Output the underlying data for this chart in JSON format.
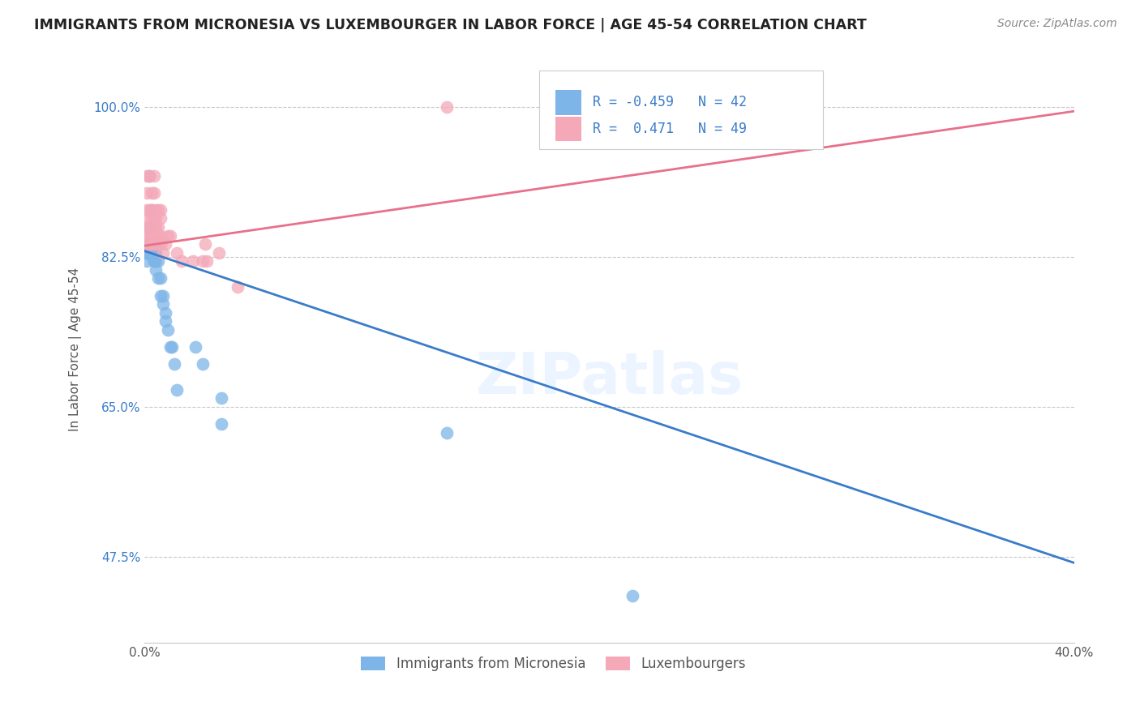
{
  "title": "IMMIGRANTS FROM MICRONESIA VS LUXEMBOURGER IN LABOR FORCE | AGE 45-54 CORRELATION CHART",
  "source": "Source: ZipAtlas.com",
  "ylabel": "In Labor Force | Age 45-54",
  "yticks_pct": [
    47.5,
    65.0,
    82.5,
    100.0
  ],
  "micronesia_color": "#7EB5E8",
  "luxembourger_color": "#F4A8B8",
  "micronesia_line_color": "#3A7CC8",
  "luxembourger_line_color": "#E8708A",
  "background_color": "#ffffff",
  "grid_color": "#c8c8c8",
  "R_micronesia": -0.459,
  "N_micronesia": 42,
  "R_luxembourger": 0.471,
  "N_luxembourger": 49,
  "watermark": "ZIPatlas",
  "xlim": [
    0.0,
    0.4
  ],
  "ylim": [
    0.375,
    1.06
  ],
  "mic_trend_x0": 0.0,
  "mic_trend_y0": 0.832,
  "mic_trend_x1": 0.4,
  "mic_trend_y1": 0.468,
  "lux_trend_x0": 0.0,
  "lux_trend_y0": 0.838,
  "lux_trend_x1": 0.4,
  "lux_trend_y1": 0.995,
  "micronesia_x": [
    0.001,
    0.001,
    0.001,
    0.001,
    0.001,
    0.001,
    0.001,
    0.002,
    0.002,
    0.002,
    0.002,
    0.003,
    0.003,
    0.003,
    0.003,
    0.004,
    0.004,
    0.004,
    0.004,
    0.005,
    0.005,
    0.005,
    0.005,
    0.006,
    0.006,
    0.007,
    0.007,
    0.008,
    0.008,
    0.009,
    0.009,
    0.01,
    0.011,
    0.012,
    0.013,
    0.014,
    0.022,
    0.025,
    0.033,
    0.033,
    0.13,
    0.21
  ],
  "micronesia_y": [
    0.84,
    0.84,
    0.83,
    0.83,
    0.83,
    0.83,
    0.82,
    0.92,
    0.86,
    0.84,
    0.83,
    0.88,
    0.86,
    0.84,
    0.83,
    0.84,
    0.83,
    0.82,
    0.82,
    0.84,
    0.83,
    0.82,
    0.81,
    0.82,
    0.8,
    0.8,
    0.78,
    0.78,
    0.77,
    0.76,
    0.75,
    0.74,
    0.72,
    0.72,
    0.7,
    0.67,
    0.72,
    0.7,
    0.66,
    0.63,
    0.62,
    0.43
  ],
  "luxembourger_x": [
    0.001,
    0.001,
    0.001,
    0.001,
    0.001,
    0.001,
    0.002,
    0.002,
    0.002,
    0.002,
    0.002,
    0.002,
    0.003,
    0.003,
    0.003,
    0.003,
    0.003,
    0.004,
    0.004,
    0.004,
    0.004,
    0.004,
    0.004,
    0.005,
    0.005,
    0.005,
    0.005,
    0.005,
    0.006,
    0.006,
    0.006,
    0.006,
    0.007,
    0.007,
    0.007,
    0.007,
    0.008,
    0.009,
    0.01,
    0.011,
    0.014,
    0.016,
    0.021,
    0.025,
    0.026,
    0.027,
    0.032,
    0.04,
    0.13
  ],
  "luxembourger_y": [
    0.84,
    0.85,
    0.86,
    0.88,
    0.9,
    0.92,
    0.84,
    0.85,
    0.86,
    0.87,
    0.88,
    0.92,
    0.84,
    0.85,
    0.87,
    0.88,
    0.9,
    0.84,
    0.85,
    0.86,
    0.87,
    0.9,
    0.92,
    0.84,
    0.85,
    0.86,
    0.87,
    0.88,
    0.84,
    0.85,
    0.86,
    0.88,
    0.84,
    0.85,
    0.87,
    0.88,
    0.83,
    0.84,
    0.85,
    0.85,
    0.83,
    0.82,
    0.82,
    0.82,
    0.84,
    0.82,
    0.83,
    0.79,
    1.0
  ]
}
